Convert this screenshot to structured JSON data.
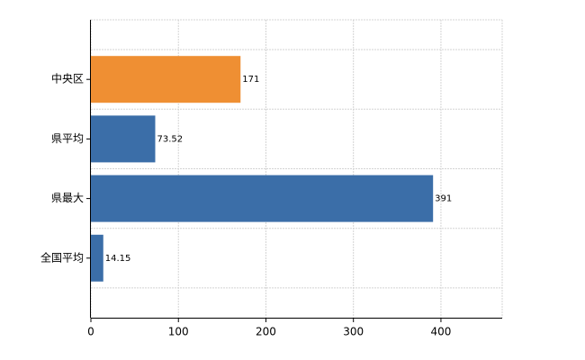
{
  "chart_data": {
    "type": "hbar",
    "categories": [
      "中央区",
      "県平均",
      "県最大",
      "全国平均"
    ],
    "values": [
      171,
      73.52,
      391,
      14.15
    ],
    "colors": [
      "#ef8f33",
      "#3b6ea8",
      "#3b6ea8",
      "#3b6ea8"
    ],
    "xlim": [
      0,
      470
    ],
    "xticks": [
      0,
      100,
      200,
      300,
      400
    ],
    "grid": true
  }
}
